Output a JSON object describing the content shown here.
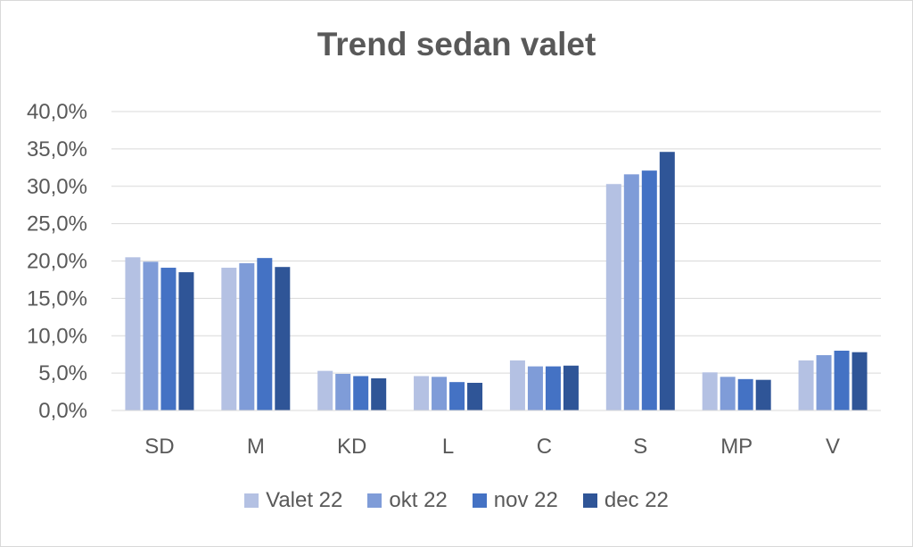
{
  "chart_data": {
    "type": "bar",
    "title": "Trend sedan valet",
    "categories": [
      "SD",
      "M",
      "KD",
      "L",
      "C",
      "S",
      "MP",
      "V"
    ],
    "series": [
      {
        "name": "Valet 22",
        "color": "#b4c1e3",
        "values": [
          20.5,
          19.1,
          5.3,
          4.6,
          6.7,
          30.3,
          5.1,
          6.7
        ]
      },
      {
        "name": "okt 22",
        "color": "#7f9cd8",
        "values": [
          19.9,
          19.7,
          4.9,
          4.5,
          5.9,
          31.6,
          4.5,
          7.4
        ]
      },
      {
        "name": "nov 22",
        "color": "#4472c4",
        "values": [
          19.1,
          20.4,
          4.6,
          3.8,
          5.9,
          32.1,
          4.2,
          8.0
        ]
      },
      {
        "name": "dec 22",
        "color": "#2f5597",
        "values": [
          18.5,
          19.2,
          4.3,
          3.7,
          6.0,
          34.6,
          4.1,
          7.8
        ]
      }
    ],
    "ylim": [
      0,
      40
    ],
    "yticks": [
      "0,0%",
      "5,0%",
      "10,0%",
      "15,0%",
      "20,0%",
      "25,0%",
      "30,0%",
      "35,0%",
      "40,0%"
    ],
    "grid": true,
    "legend": "bottom"
  }
}
